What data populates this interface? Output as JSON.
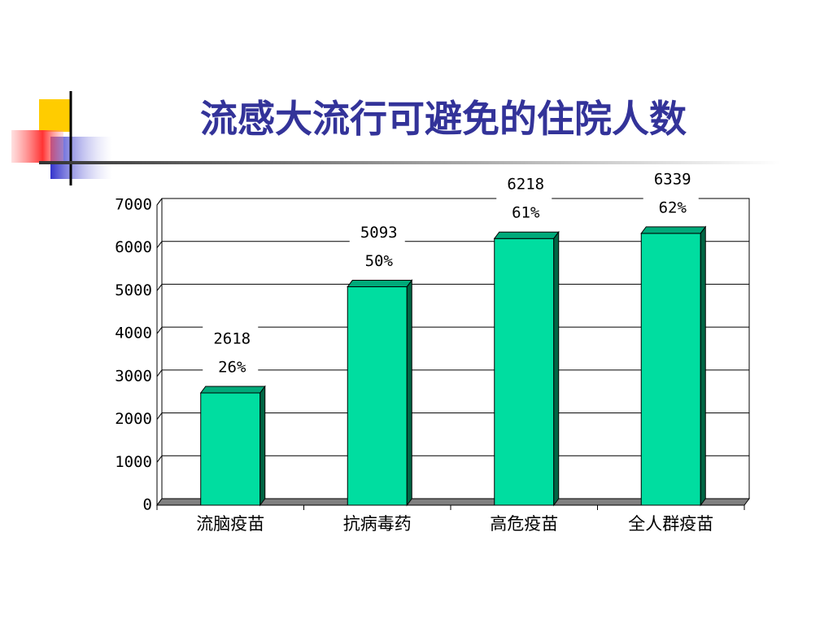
{
  "chart_data": {
    "type": "bar3d",
    "title": "流感大流行可避免的住院人数",
    "categories": [
      "流脑疫苗",
      "抗病毒药",
      "高危疫苗",
      "全人群疫苗"
    ],
    "values": [
      2618,
      5093,
      6218,
      6339
    ],
    "share_labels": [
      "26%",
      "50%",
      "61%",
      "62%"
    ],
    "color": "#00dda0",
    "ylim": [
      0,
      7000
    ],
    "yticks": [
      0,
      1000,
      2000,
      3000,
      4000,
      5000,
      6000,
      7000
    ],
    "grid": true
  }
}
